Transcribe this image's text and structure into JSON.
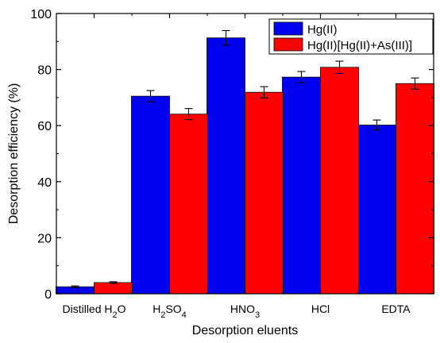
{
  "chart_data": {
    "type": "bar",
    "xlabel": "Desorption eluents",
    "ylabel": "Desorption efficiency (%)",
    "ylim": [
      0,
      100
    ],
    "yticks": [
      0,
      20,
      40,
      60,
      80,
      100
    ],
    "grid": false,
    "legend_position": "top-right",
    "categories": [
      {
        "text": "Distilled H",
        "sub1": "2",
        "text2": "O",
        "sub2": "",
        "text3": ""
      },
      {
        "text": "H",
        "sub1": "2",
        "text2": "SO",
        "sub2": "4",
        "text3": ""
      },
      {
        "text": "HNO",
        "sub1": "3",
        "text2": "",
        "sub2": "",
        "text3": ""
      },
      {
        "text": "HCl",
        "sub1": "",
        "text2": "",
        "sub2": "",
        "text3": ""
      },
      {
        "text": "EDTA",
        "sub1": "",
        "text2": "",
        "sub2": "",
        "text3": ""
      }
    ],
    "series": [
      {
        "name": "Hg(II)",
        "color": "#0000ee",
        "values": [
          2.5,
          70.5,
          91.3,
          77.3,
          60.2
        ],
        "errors": [
          0.3,
          2.0,
          2.6,
          2.0,
          1.8
        ]
      },
      {
        "name": "Hg(II)[Hg(II)+As(III)]",
        "color": "#ff0000",
        "values": [
          4.0,
          64.1,
          71.9,
          80.8,
          75.0
        ],
        "errors": [
          0.3,
          2.0,
          2.0,
          2.2,
          2.0
        ]
      }
    ]
  }
}
